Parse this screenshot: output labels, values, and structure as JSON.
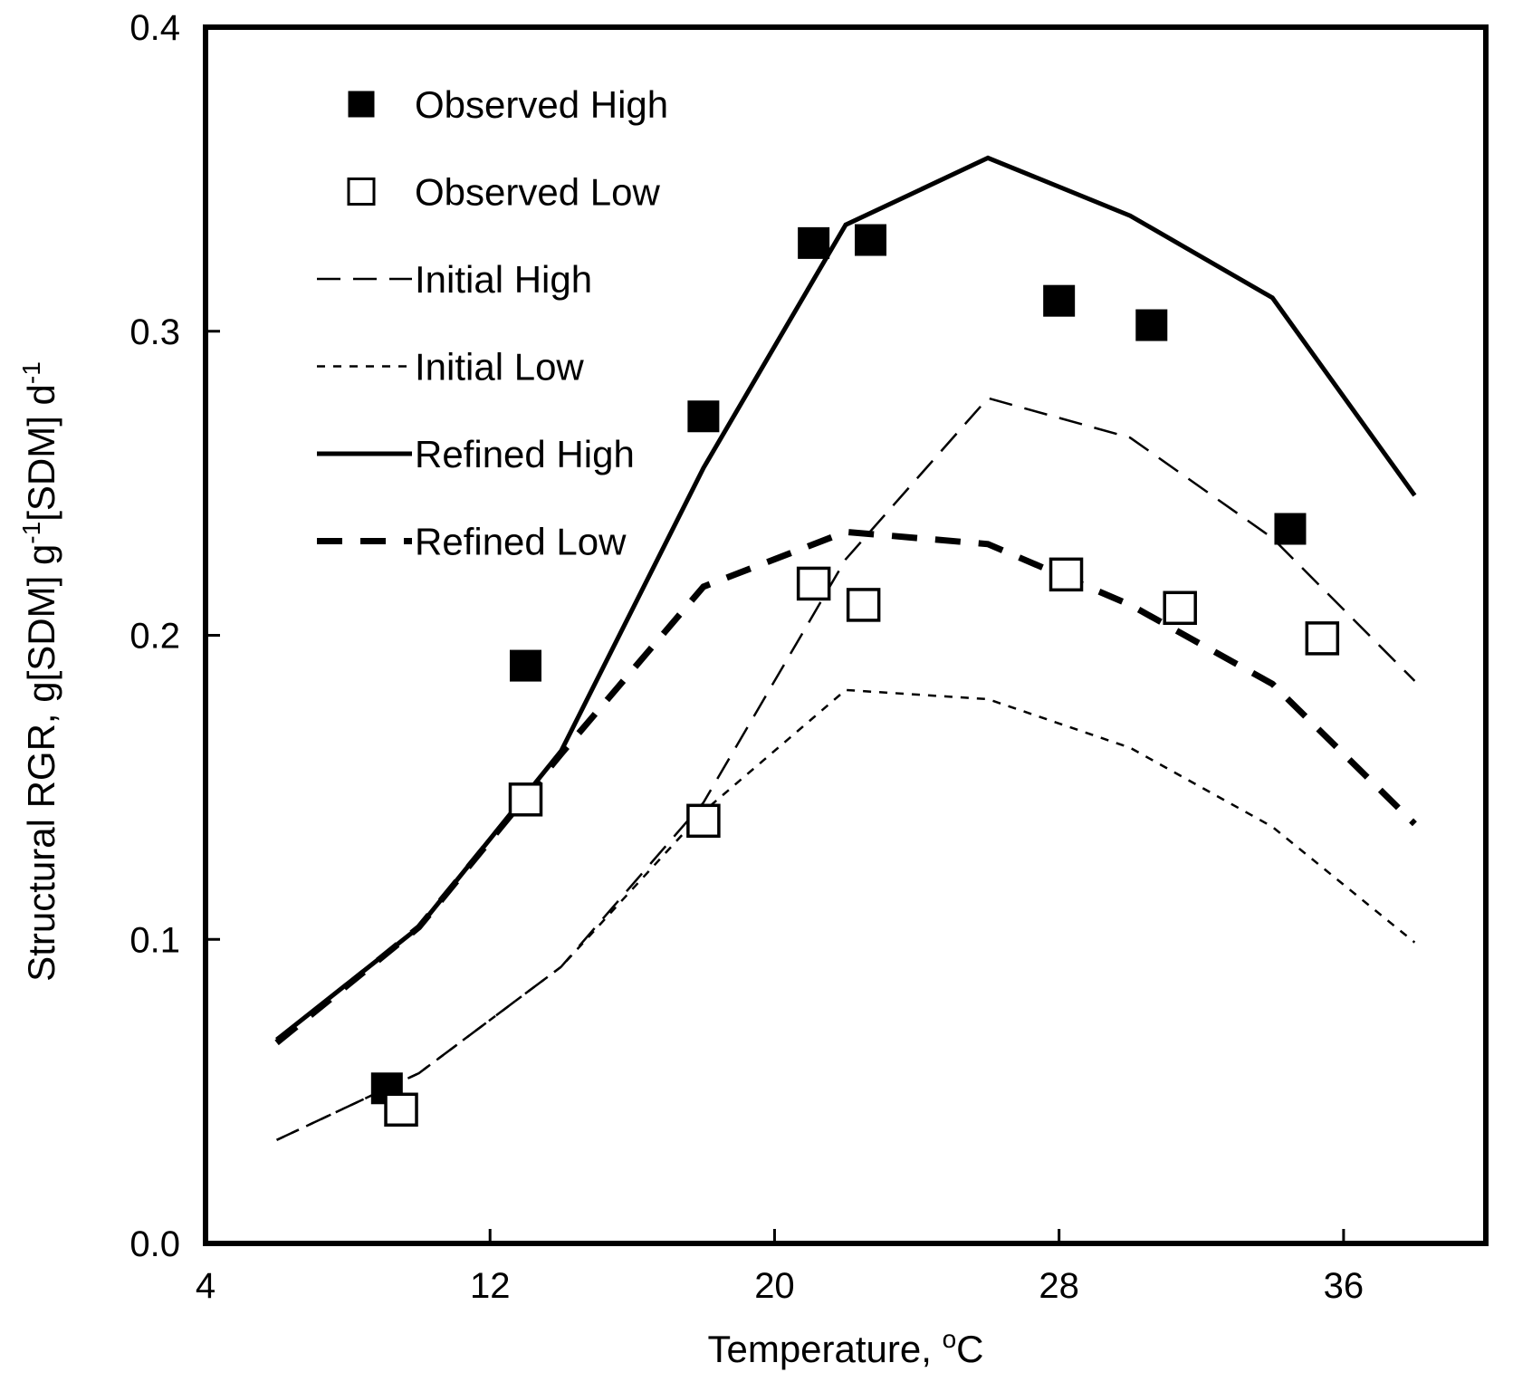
{
  "chart_data": {
    "type": "line",
    "title": "",
    "xlabel": "Temperature, ",
    "xlabel_sup": "o",
    "xlabel_unit": "C",
    "ylabel_parts": [
      "Structural RGR, g[SDM] g",
      "-1",
      "[SDM] d",
      "-1"
    ],
    "xlim": [
      4,
      40
    ],
    "ylim": [
      0.0,
      0.4
    ],
    "xticks": [
      4,
      12,
      20,
      28,
      36
    ],
    "xtick_labels": [
      "4",
      "12",
      "20",
      "28",
      "36"
    ],
    "yticks": [
      0.0,
      0.1,
      0.2,
      0.3,
      0.4
    ],
    "ytick_labels": [
      "0.0",
      "0.1",
      "0.2",
      "0.3",
      "0.4"
    ],
    "grid": false,
    "legend_position": "top-left",
    "legend": [
      "Observed High",
      "Observed Low",
      "Initial High",
      "Initial Low",
      "Refined High",
      "Refined Low"
    ],
    "series": [
      {
        "name": "Observed High",
        "kind": "marker",
        "marker": "filled-square",
        "x": [
          9.1,
          13.0,
          18.0,
          21.1,
          22.7,
          28.0,
          30.6,
          34.5
        ],
        "y": [
          0.051,
          0.19,
          0.272,
          0.329,
          0.33,
          0.31,
          0.302,
          0.235
        ]
      },
      {
        "name": "Observed Low",
        "kind": "marker",
        "marker": "open-square",
        "x": [
          9.5,
          13.0,
          18.0,
          21.1,
          22.5,
          28.2,
          31.4,
          35.4
        ],
        "y": [
          0.044,
          0.146,
          0.139,
          0.217,
          0.21,
          0.22,
          0.209,
          0.199
        ]
      },
      {
        "name": "Initial High",
        "kind": "line",
        "style": "thin-long-dash",
        "x": [
          6,
          10,
          14,
          18,
          22,
          26,
          30,
          34,
          38
        ],
        "y": [
          0.034,
          0.056,
          0.091,
          0.145,
          0.225,
          0.278,
          0.265,
          0.232,
          0.185
        ]
      },
      {
        "name": "Initial Low",
        "kind": "line",
        "style": "thin-short-dash",
        "x": [
          6,
          10,
          14,
          18,
          22,
          26,
          30,
          34,
          38
        ],
        "y": [
          0.034,
          0.056,
          0.091,
          0.142,
          0.182,
          0.179,
          0.163,
          0.137,
          0.099
        ]
      },
      {
        "name": "Refined High",
        "kind": "line",
        "style": "solid",
        "x": [
          6,
          10,
          14,
          18,
          22,
          26,
          30,
          34,
          38
        ],
        "y": [
          0.067,
          0.104,
          0.162,
          0.255,
          0.335,
          0.357,
          0.338,
          0.311,
          0.246
        ]
      },
      {
        "name": "Refined Low",
        "kind": "line",
        "style": "thick-dash",
        "x": [
          6,
          10,
          14,
          18,
          22,
          26,
          30,
          34,
          38
        ],
        "y": [
          0.066,
          0.104,
          0.161,
          0.216,
          0.234,
          0.23,
          0.21,
          0.184,
          0.138
        ]
      }
    ]
  }
}
